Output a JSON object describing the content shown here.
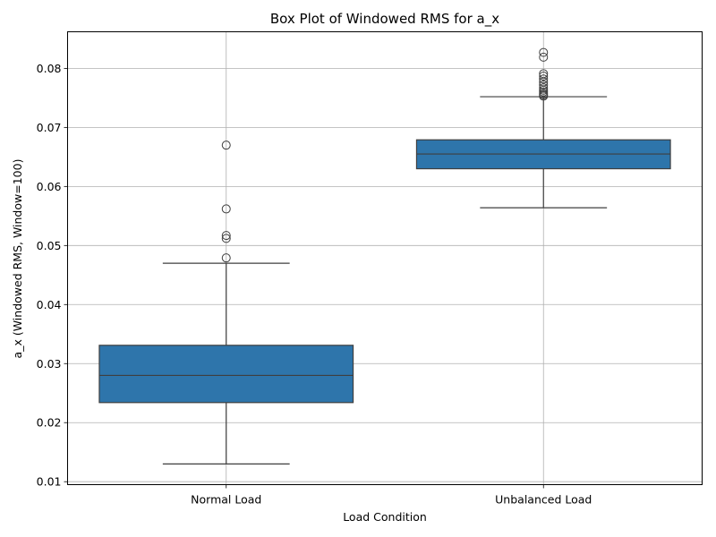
{
  "chart_data": {
    "type": "box",
    "title": "Box Plot of Windowed RMS for a_x",
    "xlabel": "Load Condition",
    "ylabel": "a_x (Windowed RMS, Window=100)",
    "ylim": [
      0.0095,
      0.0862
    ],
    "yticks": [
      0.01,
      0.02,
      0.03,
      0.04,
      0.05,
      0.06,
      0.07,
      0.08
    ],
    "ytick_labels": [
      "0.01",
      "0.02",
      "0.03",
      "0.04",
      "0.05",
      "0.06",
      "0.07",
      "0.08"
    ],
    "grid": true,
    "box_color": "#2e75ab",
    "line_color": "#3f3f3f",
    "categories": [
      "Normal Load",
      "Unbalanced Load"
    ],
    "boxes": [
      {
        "whisker_low": 0.013,
        "q1": 0.0234,
        "median": 0.028,
        "q3": 0.0331,
        "whisker_high": 0.047,
        "outliers": [
          0.0479,
          0.0512,
          0.0517,
          0.0562,
          0.067
        ]
      },
      {
        "whisker_low": 0.0564,
        "q1": 0.063,
        "median": 0.0655,
        "q3": 0.0679,
        "whisker_high": 0.0752,
        "outliers": [
          0.0753,
          0.0755,
          0.0757,
          0.076,
          0.0763,
          0.0767,
          0.0772,
          0.0777,
          0.0782,
          0.0787,
          0.0791,
          0.0819,
          0.0827
        ]
      }
    ]
  }
}
